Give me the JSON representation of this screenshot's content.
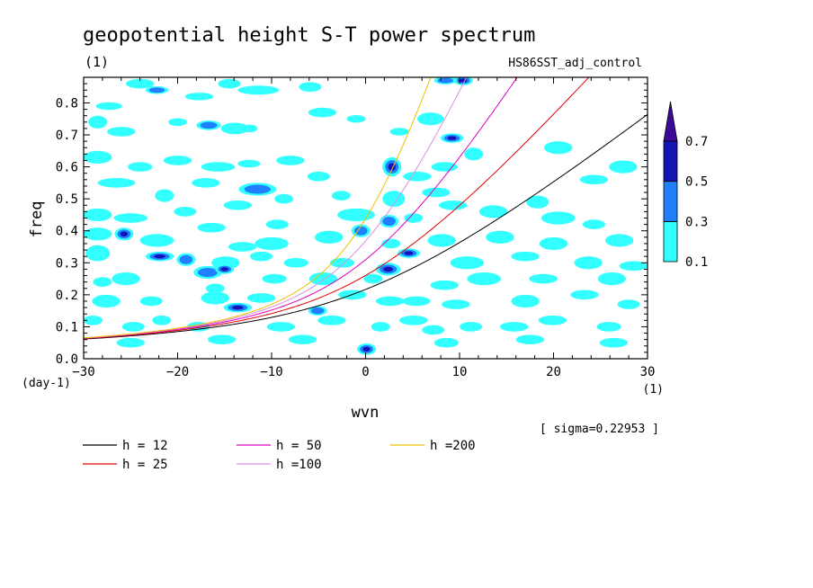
{
  "chart_data": {
    "type": "heatmap",
    "title": "geopotential height S-T power spectrum",
    "title_unit": "(1)",
    "experiment": "HS86SST_adj_control",
    "xlabel": "wvn",
    "xunit": "(1)",
    "ylabel": "freq",
    "yunit": "(day-1)",
    "xlim": [
      -30,
      30
    ],
    "ylim": [
      0,
      0.88
    ],
    "xticks": [
      -30,
      -20,
      -10,
      0,
      10,
      20,
      30
    ],
    "yticks": [
      0.0,
      0.1,
      0.2,
      0.3,
      0.4,
      0.5,
      0.6,
      0.7,
      0.8
    ],
    "sigma_note": "[ sigma=0.22953 ]",
    "colorbar": {
      "levels": [
        "0.1",
        "0.3",
        "0.5",
        "0.7"
      ],
      "colors": [
        "#33ffff",
        "#1f7fff",
        "#1414b4",
        "#3c0a96"
      ]
    },
    "dispersion_curves": [
      {
        "name": "h = 12",
        "h": 12,
        "color": "#000000"
      },
      {
        "name": "h = 25",
        "h": 25,
        "color": "#e00000"
      },
      {
        "name": "h = 50",
        "h": 50,
        "color": "#e000c0"
      },
      {
        "name": "h =100",
        "h": 100,
        "color": "#d890e0"
      },
      {
        "name": "h =200",
        "h": 200,
        "color": "#f0c000"
      }
    ],
    "blobs": [
      [
        -27.3,
        0.79,
        1.4,
        0.012,
        0.1
      ],
      [
        -24,
        0.86,
        1.5,
        0.015,
        0.1
      ],
      [
        -22.2,
        0.84,
        1.2,
        0.012,
        0.3
      ],
      [
        -17.7,
        0.82,
        1.5,
        0.012,
        0.1
      ],
      [
        -14.5,
        0.86,
        1.2,
        0.015,
        0.1
      ],
      [
        -11.4,
        0.84,
        2.2,
        0.014,
        0.1
      ],
      [
        -5.9,
        0.85,
        1.2,
        0.015,
        0.1
      ],
      [
        -28.5,
        0.74,
        1.0,
        0.02,
        0.1
      ],
      [
        -26.0,
        0.71,
        1.5,
        0.015,
        0.1
      ],
      [
        -20.0,
        0.74,
        1.0,
        0.012,
        0.1
      ],
      [
        -16.7,
        0.73,
        1.3,
        0.015,
        0.3
      ],
      [
        -13.9,
        0.72,
        1.5,
        0.018,
        0.1
      ],
      [
        -12.3,
        0.72,
        0.8,
        0.012,
        0.1
      ],
      [
        -4.6,
        0.77,
        1.5,
        0.015,
        0.1
      ],
      [
        -1.0,
        0.75,
        1.0,
        0.012,
        0.1
      ],
      [
        3.6,
        0.71,
        1.0,
        0.012,
        0.1
      ],
      [
        6.9,
        0.75,
        1.4,
        0.02,
        0.1
      ],
      [
        9.2,
        0.69,
        1.2,
        0.015,
        0.5
      ],
      [
        11.5,
        0.64,
        1.0,
        0.02,
        0.1
      ],
      [
        -28.5,
        0.63,
        1.5,
        0.02,
        0.1
      ],
      [
        -24.0,
        0.6,
        1.3,
        0.015,
        0.1
      ],
      [
        -20.0,
        0.62,
        1.5,
        0.015,
        0.1
      ],
      [
        -15.7,
        0.6,
        1.8,
        0.015,
        0.1
      ],
      [
        -12.4,
        0.61,
        1.2,
        0.012,
        0.1
      ],
      [
        -8.0,
        0.62,
        1.5,
        0.015,
        0.1
      ],
      [
        -5.0,
        0.57,
        1.2,
        0.015,
        0.1
      ],
      [
        2.8,
        0.6,
        1.0,
        0.03,
        0.5
      ],
      [
        5.5,
        0.57,
        1.5,
        0.015,
        0.1
      ],
      [
        8.4,
        0.6,
        1.4,
        0.015,
        0.1
      ],
      [
        20.5,
        0.66,
        1.5,
        0.02,
        0.1
      ],
      [
        27.4,
        0.6,
        1.5,
        0.02,
        0.1
      ],
      [
        -26.5,
        0.55,
        2.0,
        0.015,
        0.1
      ],
      [
        -21.4,
        0.51,
        1.0,
        0.02,
        0.1
      ],
      [
        -17.0,
        0.55,
        1.5,
        0.015,
        0.1
      ],
      [
        -11.5,
        0.53,
        2.0,
        0.02,
        0.3
      ],
      [
        -8.7,
        0.5,
        1.0,
        0.015,
        0.1
      ],
      [
        -2.6,
        0.51,
        1.0,
        0.015,
        0.1
      ],
      [
        3.0,
        0.5,
        1.2,
        0.025,
        0.1
      ],
      [
        7.5,
        0.52,
        1.5,
        0.015,
        0.1
      ],
      [
        9.3,
        0.48,
        1.5,
        0.015,
        0.1
      ],
      [
        24.3,
        0.56,
        1.5,
        0.015,
        0.1
      ],
      [
        -28.5,
        0.45,
        1.5,
        0.02,
        0.1
      ],
      [
        -25.0,
        0.44,
        1.8,
        0.015,
        0.1
      ],
      [
        -19.2,
        0.46,
        1.2,
        0.015,
        0.1
      ],
      [
        -13.6,
        0.48,
        1.5,
        0.015,
        0.1
      ],
      [
        -9.4,
        0.42,
        1.2,
        0.015,
        0.1
      ],
      [
        -1.0,
        0.45,
        2.0,
        0.02,
        0.1
      ],
      [
        2.5,
        0.43,
        1.0,
        0.02,
        0.3
      ],
      [
        5.1,
        0.44,
        1.0,
        0.015,
        0.1
      ],
      [
        13.6,
        0.46,
        1.5,
        0.02,
        0.1
      ],
      [
        18.3,
        0.49,
        1.2,
        0.02,
        0.1
      ],
      [
        20.5,
        0.44,
        1.8,
        0.02,
        0.1
      ],
      [
        24.3,
        0.42,
        1.2,
        0.015,
        0.1
      ],
      [
        -28.5,
        0.39,
        1.5,
        0.02,
        0.1
      ],
      [
        -25.7,
        0.39,
        1.0,
        0.02,
        0.5
      ],
      [
        -22.2,
        0.37,
        1.8,
        0.02,
        0.1
      ],
      [
        -16.4,
        0.41,
        1.5,
        0.015,
        0.1
      ],
      [
        -13.1,
        0.35,
        1.5,
        0.015,
        0.1
      ],
      [
        -10.0,
        0.36,
        1.8,
        0.02,
        0.1
      ],
      [
        -3.9,
        0.38,
        1.5,
        0.02,
        0.1
      ],
      [
        -0.5,
        0.4,
        1.0,
        0.02,
        0.3
      ],
      [
        2.7,
        0.36,
        1.0,
        0.015,
        0.1
      ],
      [
        8.1,
        0.37,
        1.5,
        0.02,
        0.1
      ],
      [
        14.3,
        0.38,
        1.5,
        0.02,
        0.1
      ],
      [
        20.0,
        0.36,
        1.5,
        0.02,
        0.1
      ],
      [
        27.0,
        0.37,
        1.5,
        0.02,
        0.1
      ],
      [
        -28.5,
        0.33,
        1.3,
        0.025,
        0.1
      ],
      [
        -21.9,
        0.32,
        1.5,
        0.015,
        0.5
      ],
      [
        -19.1,
        0.31,
        1.0,
        0.02,
        0.3
      ],
      [
        -14.9,
        0.3,
        1.5,
        0.02,
        0.1
      ],
      [
        -11.1,
        0.32,
        1.2,
        0.015,
        0.1
      ],
      [
        -7.4,
        0.3,
        1.3,
        0.015,
        0.1
      ],
      [
        -2.5,
        0.3,
        1.3,
        0.015,
        0.1
      ],
      [
        2.4,
        0.28,
        1.3,
        0.02,
        0.5
      ],
      [
        4.6,
        0.33,
        1.2,
        0.015,
        0.5
      ],
      [
        10.8,
        0.3,
        1.8,
        0.02,
        0.1
      ],
      [
        17.0,
        0.32,
        1.5,
        0.015,
        0.1
      ],
      [
        23.7,
        0.3,
        1.5,
        0.02,
        0.1
      ],
      [
        28.5,
        0.29,
        1.5,
        0.015,
        0.1
      ],
      [
        -28.0,
        0.24,
        1.0,
        0.015,
        0.1
      ],
      [
        -25.5,
        0.25,
        1.5,
        0.02,
        0.1
      ],
      [
        -16.8,
        0.27,
        1.5,
        0.02,
        0.3
      ],
      [
        -15.0,
        0.28,
        1.0,
        0.015,
        0.5
      ],
      [
        -16.0,
        0.22,
        1.0,
        0.015,
        0.1
      ],
      [
        -9.7,
        0.25,
        1.3,
        0.015,
        0.1
      ],
      [
        -4.5,
        0.25,
        1.5,
        0.02,
        0.1
      ],
      [
        0.8,
        0.25,
        1.0,
        0.015,
        0.1
      ],
      [
        8.4,
        0.23,
        1.5,
        0.015,
        0.1
      ],
      [
        12.6,
        0.25,
        1.8,
        0.02,
        0.1
      ],
      [
        18.9,
        0.25,
        1.5,
        0.015,
        0.1
      ],
      [
        26.2,
        0.25,
        1.5,
        0.02,
        0.1
      ],
      [
        -27.6,
        0.18,
        1.5,
        0.02,
        0.1
      ],
      [
        -22.8,
        0.18,
        1.2,
        0.015,
        0.1
      ],
      [
        -16.0,
        0.19,
        1.5,
        0.02,
        0.1
      ],
      [
        -13.6,
        0.16,
        1.5,
        0.015,
        0.5
      ],
      [
        -11.1,
        0.19,
        1.5,
        0.015,
        0.1
      ],
      [
        -5.1,
        0.15,
        1.0,
        0.015,
        0.3
      ],
      [
        -1.4,
        0.2,
        1.5,
        0.015,
        0.1
      ],
      [
        2.6,
        0.18,
        1.5,
        0.015,
        0.1
      ],
      [
        5.4,
        0.18,
        1.5,
        0.015,
        0.1
      ],
      [
        9.6,
        0.17,
        1.5,
        0.015,
        0.1
      ],
      [
        17.0,
        0.18,
        1.5,
        0.02,
        0.1
      ],
      [
        23.3,
        0.2,
        1.5,
        0.015,
        0.1
      ],
      [
        28.0,
        0.17,
        1.2,
        0.015,
        0.1
      ],
      [
        -29.0,
        0.12,
        1.0,
        0.015,
        0.1
      ],
      [
        -24.7,
        0.1,
        1.2,
        0.015,
        0.1
      ],
      [
        -21.7,
        0.12,
        1.0,
        0.015,
        0.1
      ],
      [
        -17.8,
        0.1,
        1.2,
        0.015,
        0.1
      ],
      [
        -9.0,
        0.1,
        1.5,
        0.015,
        0.1
      ],
      [
        -3.6,
        0.12,
        1.5,
        0.015,
        0.1
      ],
      [
        1.6,
        0.1,
        1.0,
        0.015,
        0.1
      ],
      [
        5.1,
        0.12,
        1.5,
        0.015,
        0.1
      ],
      [
        7.2,
        0.09,
        1.2,
        0.015,
        0.1
      ],
      [
        11.2,
        0.1,
        1.2,
        0.015,
        0.1
      ],
      [
        15.8,
        0.1,
        1.5,
        0.015,
        0.1
      ],
      [
        19.9,
        0.12,
        1.5,
        0.015,
        0.1
      ],
      [
        25.9,
        0.1,
        1.3,
        0.015,
        0.1
      ],
      [
        -25.0,
        0.05,
        1.5,
        0.015,
        0.1
      ],
      [
        -15.3,
        0.06,
        1.5,
        0.015,
        0.1
      ],
      [
        -6.7,
        0.06,
        1.5,
        0.015,
        0.1
      ],
      [
        0.1,
        0.03,
        1.0,
        0.018,
        0.5
      ],
      [
        8.6,
        0.05,
        1.3,
        0.015,
        0.1
      ],
      [
        17.5,
        0.06,
        1.5,
        0.015,
        0.1
      ],
      [
        26.4,
        0.05,
        1.5,
        0.015,
        0.1
      ],
      [
        10.4,
        0.87,
        1.0,
        0.015,
        0.5
      ],
      [
        8.5,
        0.87,
        1.2,
        0.012,
        0.3
      ]
    ]
  }
}
